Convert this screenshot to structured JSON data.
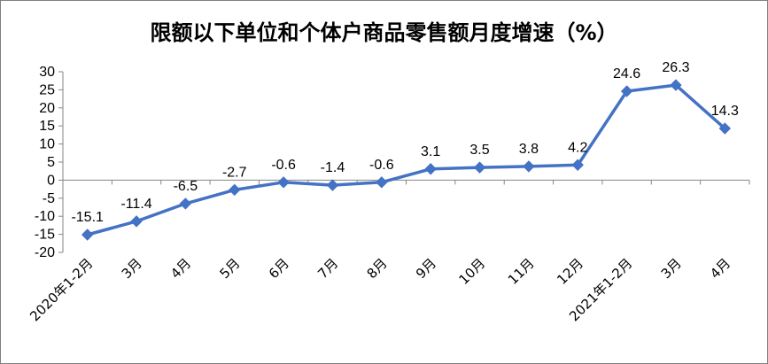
{
  "chart_data": {
    "type": "line",
    "title": "限额以下单位和个体户商品零售额月度增速（%）",
    "categories": [
      "2020年1-2月",
      "3月",
      "4月",
      "5月",
      "6月",
      "7月",
      "8月",
      "9月",
      "10月",
      "11月",
      "12月",
      "2021年1-2月",
      "3月",
      "4月"
    ],
    "series": [
      {
        "values": [
          -15.1,
          -11.4,
          -6.5,
          -2.7,
          -0.6,
          -1.4,
          -0.6,
          3.1,
          3.5,
          3.8,
          4.2,
          24.6,
          26.3,
          14.3
        ],
        "color": "#4472c4",
        "marker": "diamond"
      }
    ],
    "data_labels": [
      "-15.1",
      "-11.4",
      "-6.5",
      "-2.7",
      "-0.6",
      "-1.4",
      "-0.6",
      "3.1",
      "3.5",
      "3.8",
      "4.2",
      "24.6",
      "26.3",
      "14.3"
    ],
    "y_ticks": [
      "30",
      "25",
      "20",
      "15",
      "10",
      "5",
      "0",
      "-5",
      "-10",
      "-15",
      "-20"
    ],
    "ylim": [
      -20,
      30
    ],
    "grid": false,
    "legend": "none"
  }
}
